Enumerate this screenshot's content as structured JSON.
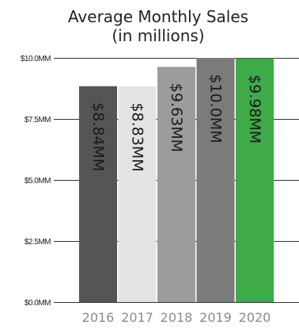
{
  "chart_data": {
    "type": "bar",
    "title": "Average Monthly Sales",
    "subtitle": "(in millions)",
    "xlabel": "",
    "ylabel": "",
    "categories": [
      "2016",
      "2017",
      "2018",
      "2019",
      "2020"
    ],
    "values": [
      8.84,
      8.83,
      9.63,
      10.0,
      9.98
    ],
    "data_labels": [
      "$8.84MM",
      "$8.83MM",
      "$9.63MM",
      "$10.0MM",
      "$9.98MM"
    ],
    "bar_colors": [
      "#555555",
      "#e3e3e3",
      "#9c9c9c",
      "#7b7b7b",
      "#3faa48"
    ],
    "ylim": [
      0,
      10
    ],
    "yticks": [
      0,
      2.5,
      5,
      7.5,
      10
    ],
    "ytick_labels": [
      "$0.0MM",
      "$2.5MM",
      "$5.0MM",
      "$7.5MM",
      "$10.0MM"
    ],
    "grid": "horizontal",
    "legend": "none",
    "data_label_orientation": "vertical"
  }
}
